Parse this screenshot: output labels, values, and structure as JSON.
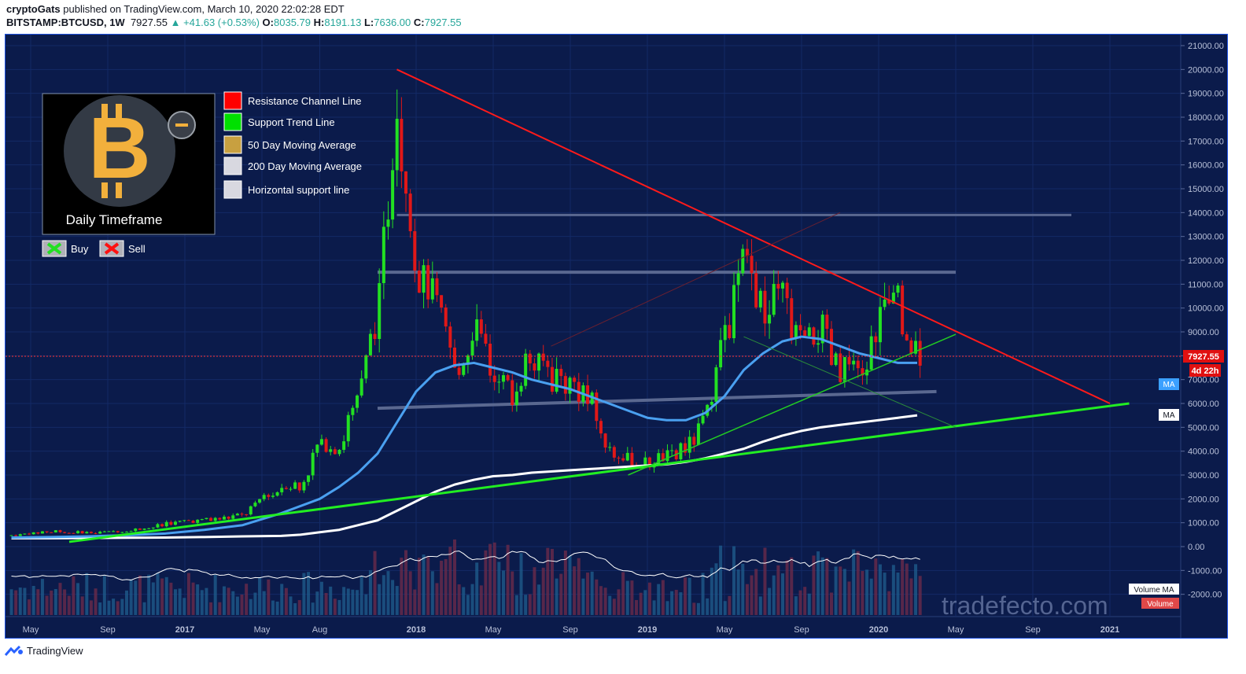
{
  "header": {
    "author": "cryptoGats",
    "published": "published on TradingView.com, March 10, 2020 22:02:28 EDT",
    "symbol": "BITSTAMP:BTCUSD, 1W",
    "last": "7927.55",
    "change_arrow": "▲",
    "change": "+41.63 (+0.53%)",
    "o_label": "O:",
    "o": "8035.79",
    "h_label": "H:",
    "h": "8191.13",
    "l_label": "L:",
    "l": "7636.00",
    "c_label": "C:",
    "c": "7927.55"
  },
  "legend": {
    "timeframe": "Daily Timeframe",
    "items": [
      {
        "label": "Resistance Channel Line",
        "color": "#ff0000"
      },
      {
        "label": "Support Trend Line",
        "color": "#00e000"
      },
      {
        "label": "50 Day Moving Average",
        "color": "#c8a040"
      },
      {
        "label": "200 Day Moving Average",
        "color": "#d8d8e0"
      },
      {
        "label": "Horizontal support line",
        "color": "#d8d8e0"
      }
    ],
    "buy": "Buy",
    "sell": "Sell",
    "minus_icon": "minus-circle-icon",
    "logo_icon": "bitcoin-logo-icon"
  },
  "price_tag": {
    "value": "7927.55",
    "countdown": "4d 22h"
  },
  "ma_tags": [
    "MA",
    "MA"
  ],
  "volume_tags": {
    "volume_ma": "Volume MA",
    "volume": "Volume"
  },
  "watermark": "tradefecto.com",
  "footer": {
    "brand": "TradingView",
    "logo_icon": "tradingview-logo-icon"
  },
  "chart_data": {
    "type": "candlestick",
    "y_ticks": [
      "21000.00",
      "20000.00",
      "19000.00",
      "18000.00",
      "17000.00",
      "16000.00",
      "15000.00",
      "14000.00",
      "13000.00",
      "12000.00",
      "11000.00",
      "10000.00",
      "9000.00",
      "8000.00",
      "7000.00",
      "6000.00",
      "5000.00",
      "4000.00",
      "3000.00",
      "2000.00",
      "1000.00",
      "0.00",
      "-1000.00",
      "-2000.00"
    ],
    "y_tick_values": [
      21000,
      20000,
      19000,
      18000,
      17000,
      16000,
      15000,
      14000,
      13000,
      12000,
      11000,
      10000,
      9000,
      8000,
      7000,
      6000,
      5000,
      4000,
      3000,
      2000,
      1000,
      0,
      -1000,
      -2000
    ],
    "x_ticks": [
      "May",
      "Sep",
      "2017",
      "May",
      "Aug",
      "2018",
      "May",
      "Sep",
      "2019",
      "May",
      "Sep",
      "2020",
      "May",
      "Sep",
      "2021"
    ],
    "x_tick_dates": [
      "2016-05",
      "2016-09",
      "2017-01",
      "2017-05",
      "2017-08",
      "2018-01",
      "2018-05",
      "2018-09",
      "2019-01",
      "2019-05",
      "2019-09",
      "2020-01",
      "2020-05",
      "2020-09",
      "2021-01"
    ],
    "ylim": [
      -2500,
      21500
    ],
    "series": [
      {
        "name": "BTCUSD weekly closes (approx.)",
        "dates": [
          "2016-04",
          "2016-06",
          "2016-08",
          "2016-10",
          "2016-12",
          "2017-02",
          "2017-04",
          "2017-06",
          "2017-07",
          "2017-08",
          "2017-09",
          "2017-10",
          "2017-11",
          "2017-12",
          "2018-01",
          "2018-02",
          "2018-03",
          "2018-04",
          "2018-05",
          "2018-06",
          "2018-07",
          "2018-08",
          "2018-09",
          "2018-10",
          "2018-11",
          "2018-12",
          "2019-01",
          "2019-02",
          "2019-03",
          "2019-04",
          "2019-05",
          "2019-06",
          "2019-07",
          "2019-08",
          "2019-09",
          "2019-10",
          "2019-11",
          "2019-12",
          "2020-01",
          "2020-02",
          "2020-03"
        ],
        "values": [
          450,
          650,
          580,
          650,
          950,
          1100,
          1300,
          2600,
          2500,
          4300,
          4200,
          6100,
          9800,
          18900,
          11500,
          10300,
          7000,
          9200,
          7500,
          6400,
          8200,
          7000,
          6600,
          6300,
          4000,
          3700,
          3500,
          3800,
          4100,
          5300,
          8700,
          11800,
          10000,
          10400,
          8300,
          9200,
          7400,
          7200,
          9300,
          10200,
          7900
        ]
      }
    ],
    "ma50": [
      380,
      400,
      430,
      480,
      550,
      700,
      900,
      1400,
      1700,
      2000,
      2500,
      3100,
      3900,
      5200,
      6500,
      7300,
      7600,
      7700,
      7500,
      7300,
      7000,
      6800,
      6600,
      6300,
      6000,
      5700,
      5400,
      5300,
      5300,
      5600,
      6300,
      7400,
      8100,
      8600,
      8800,
      8700,
      8400,
      8100,
      7900,
      7700,
      7700
    ],
    "ma200": [
      350,
      350,
      360,
      370,
      380,
      400,
      430,
      450,
      500,
      600,
      700,
      900,
      1100,
      1500,
      1900,
      2300,
      2600,
      2800,
      2950,
      3000,
      3100,
      3150,
      3200,
      3250,
      3300,
      3350,
      3400,
      3450,
      3550,
      3700,
      3900,
      4100,
      4400,
      4650,
      4850,
      5000,
      5100,
      5200,
      5300,
      5400,
      5500
    ],
    "trendlines": {
      "resistance": {
        "from": [
          "2017-12",
          20000
        ],
        "to": [
          "2021-01",
          6000
        ]
      },
      "support_long": {
        "from": [
          "2016-07",
          200
        ],
        "to": [
          "2021-02",
          6000
        ]
      },
      "support_short": {
        "from": [
          "2018-12",
          3000
        ],
        "to": [
          "2020-05",
          8900
        ]
      },
      "horizontal_lines": [
        13900,
        11500,
        6500
      ]
    }
  }
}
